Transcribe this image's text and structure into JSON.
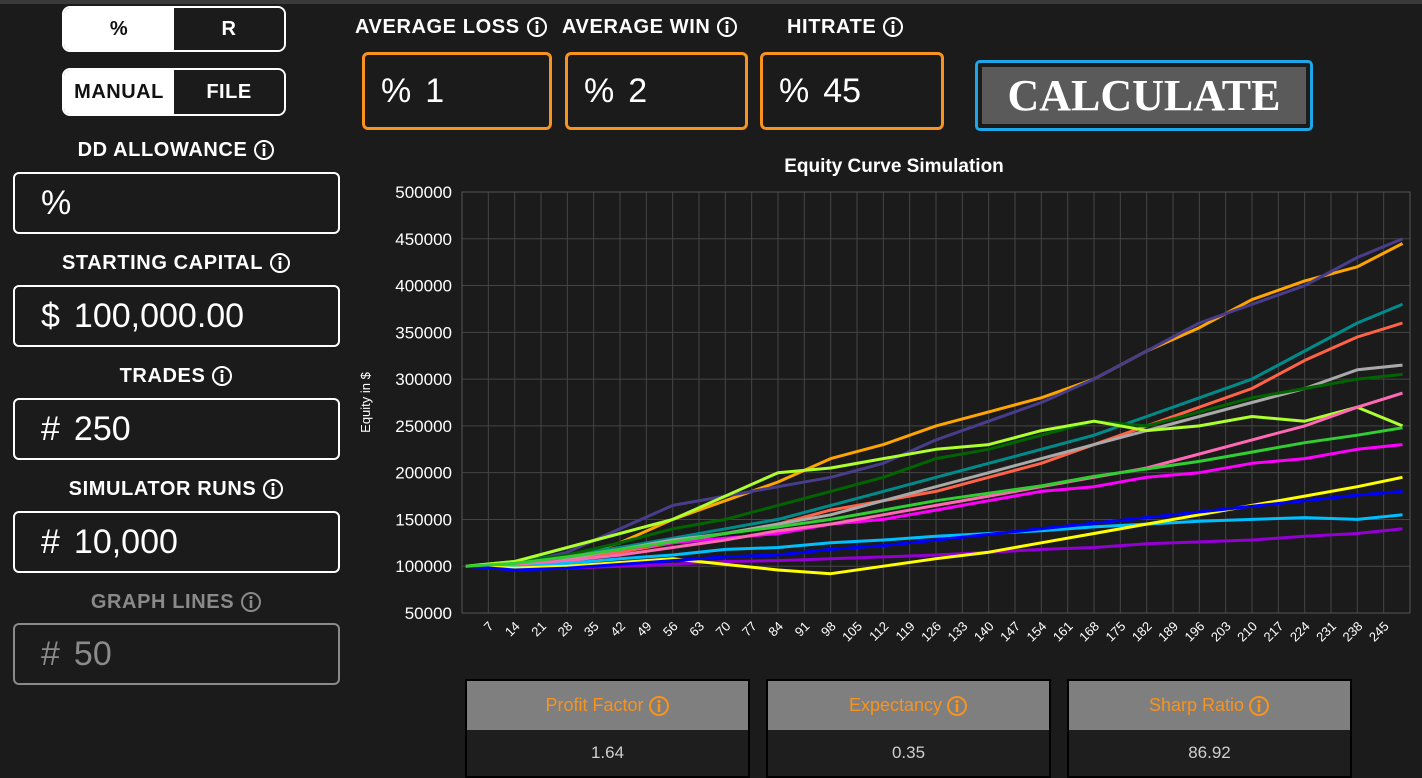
{
  "toggles": [
    {
      "left": "%",
      "right": "R"
    },
    {
      "left": "MANUAL",
      "right": "FILE"
    }
  ],
  "top_inputs": [
    {
      "label": "AVERAGE LOSS",
      "prefix": "%",
      "value": 1
    },
    {
      "label": "AVERAGE WIN",
      "prefix": "%",
      "value": 2
    },
    {
      "label": "HITRATE",
      "prefix": "%",
      "value": 45
    }
  ],
  "calculate": "CALCULATE",
  "left_inputs": [
    {
      "label": "DD ALLOWANCE",
      "prefix": "%"
    },
    {
      "label": "STARTING CAPITAL",
      "prefix": "$",
      "value": "100,000.00"
    },
    {
      "label": "TRADES",
      "prefix": "#",
      "value": 250
    },
    {
      "label": "SIMULATOR RUNS",
      "prefix": "#",
      "value": "10,000"
    },
    {
      "label": "GRAPH LINES",
      "prefix": "#",
      "value": 50
    }
  ],
  "stats": [
    {
      "label": "Profit Factor",
      "value": 1.64
    },
    {
      "label": "Expectancy",
      "value": 0.35
    },
    {
      "label": "Sharp Ratio",
      "value": 86.92
    }
  ],
  "chart_data": {
    "type": "line",
    "title": "Equity Curve Simulation",
    "y_label": "Equity in $",
    "grid": true,
    "xlim": [
      0,
      252
    ],
    "ylim": [
      50000,
      500000
    ],
    "yticks": [
      50000,
      100000,
      150000,
      200000,
      250000,
      300000,
      350000,
      400000,
      450000,
      500000
    ],
    "xticks": [
      7,
      14,
      21,
      28,
      35,
      42,
      49,
      56,
      63,
      70,
      77,
      84,
      91,
      98,
      105,
      112,
      119,
      126,
      133,
      140,
      147,
      154,
      161,
      168,
      175,
      182,
      189,
      196,
      203,
      210,
      217,
      224,
      231,
      238,
      245
    ],
    "x": [
      1,
      14,
      28,
      42,
      56,
      70,
      84,
      98,
      112,
      126,
      140,
      154,
      168,
      182,
      196,
      210,
      224,
      238,
      250
    ],
    "series": [
      {
        "color": "#ffa500",
        "values": [
          100000,
          105000,
          110000,
          125000,
          150000,
          170000,
          190000,
          215000,
          230000,
          250000,
          265000,
          280000,
          300000,
          330000,
          355000,
          385000,
          405000,
          420000,
          445000
        ]
      },
      {
        "color": "#483d8b",
        "values": [
          100000,
          102000,
          115000,
          140000,
          165000,
          175000,
          185000,
          195000,
          210000,
          235000,
          255000,
          275000,
          300000,
          330000,
          360000,
          380000,
          400000,
          430000,
          450000
        ]
      },
      {
        "color": "#008b8b",
        "values": [
          100000,
          105000,
          112000,
          120000,
          130000,
          140000,
          150000,
          165000,
          180000,
          195000,
          210000,
          225000,
          240000,
          260000,
          280000,
          300000,
          330000,
          360000,
          380000
        ]
      },
      {
        "color": "#ff6347",
        "values": [
          100000,
          98000,
          105000,
          115000,
          125000,
          135000,
          145000,
          160000,
          170000,
          180000,
          195000,
          210000,
          230000,
          250000,
          270000,
          290000,
          320000,
          345000,
          360000
        ]
      },
      {
        "color": "#a9a9a9",
        "values": [
          100000,
          103000,
          108000,
          118000,
          128000,
          135000,
          145000,
          155000,
          170000,
          185000,
          200000,
          215000,
          230000,
          245000,
          260000,
          275000,
          290000,
          310000,
          315000
        ]
      },
      {
        "color": "#006400",
        "values": [
          100000,
          104000,
          112000,
          125000,
          140000,
          150000,
          165000,
          180000,
          195000,
          215000,
          225000,
          240000,
          255000,
          250000,
          265000,
          280000,
          290000,
          300000,
          305000
        ]
      },
      {
        "color": "#adff2f",
        "values": [
          100000,
          105000,
          120000,
          135000,
          150000,
          175000,
          200000,
          205000,
          215000,
          225000,
          230000,
          245000,
          255000,
          245000,
          250000,
          260000,
          255000,
          270000,
          250000
        ]
      },
      {
        "color": "#ff00ff",
        "values": [
          100000,
          102000,
          110000,
          118000,
          125000,
          130000,
          135000,
          145000,
          150000,
          160000,
          170000,
          180000,
          185000,
          195000,
          200000,
          210000,
          215000,
          225000,
          230000
        ]
      },
      {
        "color": "#ff69b4",
        "values": [
          100000,
          101000,
          106000,
          112000,
          120000,
          128000,
          138000,
          145000,
          155000,
          165000,
          175000,
          185000,
          195000,
          205000,
          220000,
          235000,
          250000,
          270000,
          285000
        ]
      },
      {
        "color": "#00bfff",
        "values": [
          100000,
          99000,
          103000,
          108000,
          112000,
          118000,
          120000,
          125000,
          128000,
          132000,
          135000,
          138000,
          142000,
          145000,
          148000,
          150000,
          152000,
          150000,
          155000
        ]
      },
      {
        "color": "#9400d3",
        "values": [
          100000,
          97000,
          98000,
          100000,
          102000,
          105000,
          106000,
          108000,
          110000,
          112000,
          115000,
          118000,
          120000,
          124000,
          126000,
          128000,
          132000,
          135000,
          140000
        ]
      },
      {
        "color": "#ffff00",
        "values": [
          100000,
          98000,
          100000,
          104000,
          108000,
          102000,
          96000,
          92000,
          100000,
          108000,
          115000,
          125000,
          135000,
          145000,
          155000,
          165000,
          175000,
          185000,
          195000
        ]
      },
      {
        "color": "#0000ff",
        "values": [
          100000,
          96000,
          98000,
          102000,
          106000,
          110000,
          112000,
          118000,
          122000,
          128000,
          134000,
          140000,
          146000,
          152000,
          158000,
          164000,
          170000,
          176000,
          180000
        ]
      },
      {
        "color": "#32cd32",
        "values": [
          100000,
          103000,
          110000,
          118000,
          126000,
          135000,
          142000,
          150000,
          160000,
          170000,
          178000,
          186000,
          196000,
          204000,
          212000,
          222000,
          232000,
          240000,
          248000
        ]
      }
    ]
  }
}
